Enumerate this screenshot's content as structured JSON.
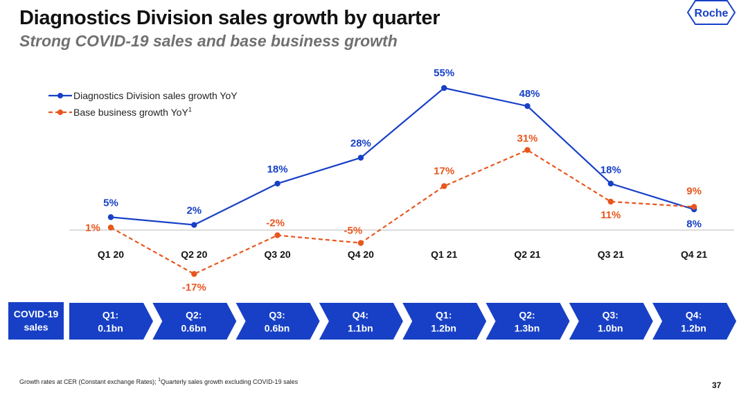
{
  "title": "Diagnostics Division sales growth by quarter",
  "subtitle": "Strong COVID-19 sales and base business growth",
  "logo_text": "Roche",
  "colors": {
    "blue": "#1740c6",
    "orange": "#e8561e",
    "baseline": "#d0d0d0",
    "arrow_fill": "#1740c6"
  },
  "chart_data": {
    "type": "line",
    "categories": [
      "Q1 20",
      "Q2 20",
      "Q3 20",
      "Q4 20",
      "Q1 21",
      "Q2 21",
      "Q3 21",
      "Q4 21"
    ],
    "ylim": [
      -20,
      60
    ],
    "series": [
      {
        "name": "Diagnostics Division sales growth YoY",
        "style": "solid",
        "color": "#1740c6",
        "values": [
          5,
          2,
          18,
          28,
          55,
          48,
          18,
          8
        ],
        "labels": [
          "5%",
          "2%",
          "18%",
          "28%",
          "55%",
          "48%",
          "18%",
          "8%"
        ]
      },
      {
        "name": "Base business growth YoY",
        "name_superscript": "1",
        "style": "dashed",
        "color": "#e8561e",
        "values": [
          1,
          -17,
          -2,
          -5,
          17,
          31,
          11,
          9
        ],
        "labels": [
          "1%",
          "-17%",
          "-2%",
          "-5%",
          "17%",
          "31%",
          "11%",
          "9%"
        ]
      }
    ],
    "legend_position": "top-left",
    "grid": false
  },
  "covid_sales": {
    "label": "COVID-19 sales",
    "items": [
      {
        "quarter": "Q1:",
        "value": "0.1bn"
      },
      {
        "quarter": "Q2:",
        "value": "0.6bn"
      },
      {
        "quarter": "Q3:",
        "value": "0.6bn"
      },
      {
        "quarter": "Q4:",
        "value": "1.1bn"
      },
      {
        "quarter": "Q1:",
        "value": "1.2bn"
      },
      {
        "quarter": "Q2:",
        "value": "1.3bn"
      },
      {
        "quarter": "Q3:",
        "value": "1.0bn"
      },
      {
        "quarter": "Q4:",
        "value": "1.2bn"
      }
    ]
  },
  "footnote": {
    "text_before": "Growth rates at CER (Constant exchange Rates); ",
    "superscript": "1",
    "text_after": "Quarterly sales growth excluding COVID-19 sales"
  },
  "page_number": "37"
}
